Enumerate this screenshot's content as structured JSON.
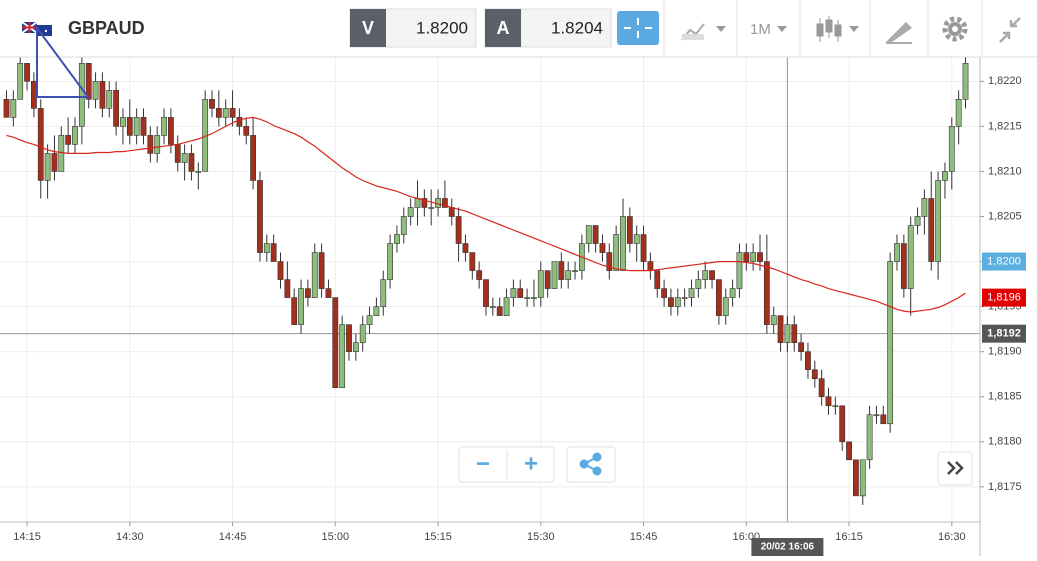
{
  "header": {
    "symbol": "GBPAUD",
    "bid_label": "V",
    "bid": "1.8200",
    "ask_label": "A",
    "ask": "1.8204",
    "timeframe": "1M"
  },
  "controls": {
    "zoom_out": "−",
    "zoom_in": "+"
  },
  "chart_data": {
    "type": "candlestick",
    "x": [
      "14:12",
      "14:13",
      "14:14",
      "14:15",
      "14:16",
      "14:17",
      "14:18",
      "14:19",
      "14:20",
      "14:21",
      "14:22",
      "14:23",
      "14:24",
      "14:25",
      "14:26",
      "14:27",
      "14:28",
      "14:29",
      "14:30",
      "14:31",
      "14:32",
      "14:33",
      "14:34",
      "14:35",
      "14:36",
      "14:37",
      "14:38",
      "14:39",
      "14:40",
      "14:41",
      "14:42",
      "14:43",
      "14:44",
      "14:45",
      "14:46",
      "14:47",
      "14:48",
      "14:49",
      "14:50",
      "14:51",
      "14:52",
      "14:53",
      "14:54",
      "14:55",
      "14:56",
      "14:57",
      "14:58",
      "14:59",
      "15:00",
      "15:01",
      "15:02",
      "15:03",
      "15:04",
      "15:05",
      "15:06",
      "15:07",
      "15:08",
      "15:09",
      "15:10",
      "15:11",
      "15:12",
      "15:13",
      "15:14",
      "15:15",
      "15:16",
      "15:17",
      "15:18",
      "15:19",
      "15:20",
      "15:21",
      "15:22",
      "15:23",
      "15:24",
      "15:25",
      "15:26",
      "15:27",
      "15:28",
      "15:29",
      "15:30",
      "15:31",
      "15:32",
      "15:33",
      "15:34",
      "15:35",
      "15:36",
      "15:37",
      "15:38",
      "15:39",
      "15:40",
      "15:41",
      "15:42",
      "15:43",
      "15:44",
      "15:45",
      "15:46",
      "15:47",
      "15:48",
      "15:49",
      "15:50",
      "15:51",
      "15:52",
      "15:53",
      "15:54",
      "15:55",
      "15:56",
      "15:57",
      "15:58",
      "15:59",
      "16:00",
      "16:01",
      "16:02",
      "16:03",
      "16:04",
      "16:05",
      "16:06",
      "16:07",
      "16:08",
      "16:09",
      "16:10",
      "16:11",
      "16:12",
      "16:13",
      "16:14",
      "16:15",
      "16:16",
      "16:17",
      "16:18",
      "16:19",
      "16:20",
      "16:21",
      "16:22",
      "16:23",
      "16:24",
      "16:25",
      "16:26",
      "16:27",
      "16:28",
      "16:29",
      "16:30",
      "16:31",
      "16:32"
    ],
    "open": [
      1.8218,
      1.8216,
      1.8218,
      1.8222,
      1.822,
      1.8217,
      1.8209,
      1.8212,
      1.821,
      1.8214,
      1.8213,
      1.8215,
      1.8222,
      1.8218,
      1.822,
      1.8217,
      1.8219,
      1.8215,
      1.8216,
      1.8214,
      1.8216,
      1.8214,
      1.8212,
      1.8214,
      1.8216,
      1.8213,
      1.8211,
      1.8212,
      1.821,
      1.821,
      1.8218,
      1.8217,
      1.8216,
      1.8217,
      1.8216,
      1.8215,
      1.8214,
      1.8209,
      1.8201,
      1.8202,
      1.82,
      1.8198,
      1.8196,
      1.8193,
      1.8197,
      1.8196,
      1.8201,
      1.8197,
      1.8196,
      1.8186,
      1.8193,
      1.819,
      1.8191,
      1.8193,
      1.8194,
      1.8195,
      1.8198,
      1.8202,
      1.8203,
      1.8205,
      1.8206,
      1.8207,
      1.8206,
      1.8206,
      1.8207,
      1.8206,
      1.8205,
      1.8202,
      1.8201,
      1.8199,
      1.8198,
      1.8195,
      1.8195,
      1.8194,
      1.8196,
      1.8197,
      1.8196,
      1.8196,
      1.8196,
      1.8199,
      1.8197,
      1.82,
      1.8198,
      1.8199,
      1.8199,
      1.8202,
      1.8204,
      1.8202,
      1.8201,
      1.8199,
      1.8199,
      1.8205,
      1.8202,
      1.8203,
      1.82,
      1.8199,
      1.8197,
      1.8196,
      1.8195,
      1.8196,
      1.8196,
      1.8197,
      1.8198,
      1.8199,
      1.8198,
      1.8194,
      1.8196,
      1.8197,
      1.8201,
      1.82,
      1.8201,
      1.82,
      1.8193,
      1.8194,
      1.8191,
      1.8193,
      1.8191,
      1.819,
      1.8188,
      1.8187,
      1.8185,
      1.8184,
      1.8184,
      1.818,
      1.8178,
      1.8174,
      1.8178,
      1.8183,
      1.8183,
      1.8182,
      1.82,
      1.8202,
      1.8197,
      1.8204,
      1.8205,
      1.8207,
      1.82,
      1.8209,
      1.821,
      1.8215,
      1.8218
    ],
    "high": [
      1.8219,
      1.8219,
      1.8223,
      1.8222,
      1.8221,
      1.8218,
      1.8213,
      1.8214,
      1.8215,
      1.8216,
      1.8216,
      1.8223,
      1.8222,
      1.8221,
      1.8221,
      1.822,
      1.822,
      1.8217,
      1.8218,
      1.8217,
      1.8217,
      1.8215,
      1.8215,
      1.8217,
      1.8217,
      1.8214,
      1.8213,
      1.8213,
      1.8211,
      1.8219,
      1.8219,
      1.8219,
      1.8218,
      1.8219,
      1.8217,
      1.8216,
      1.8216,
      1.821,
      1.8203,
      1.8203,
      1.8201,
      1.82,
      1.8197,
      1.8198,
      1.8198,
      1.8202,
      1.8202,
      1.8198,
      1.8196,
      1.8194,
      1.8193,
      1.8192,
      1.8194,
      1.8195,
      1.8196,
      1.8199,
      1.8203,
      1.8204,
      1.8206,
      1.8207,
      1.8209,
      1.8208,
      1.8208,
      1.8208,
      1.8209,
      1.8207,
      1.8206,
      1.8203,
      1.8201,
      1.82,
      1.8198,
      1.8196,
      1.8196,
      1.8197,
      1.8198,
      1.8198,
      1.8197,
      1.8198,
      1.82,
      1.8199,
      1.82,
      1.8201,
      1.82,
      1.82,
      1.8203,
      1.8204,
      1.8204,
      1.8203,
      1.8202,
      1.8204,
      1.8207,
      1.8206,
      1.8204,
      1.8204,
      1.8201,
      1.8199,
      1.8198,
      1.8197,
      1.8197,
      1.8197,
      1.8198,
      1.8199,
      1.82,
      1.8199,
      1.8198,
      1.8197,
      1.8198,
      1.8202,
      1.8202,
      1.8202,
      1.8203,
      1.8203,
      1.8195,
      1.8194,
      1.8194,
      1.8194,
      1.8192,
      1.8191,
      1.8189,
      1.8188,
      1.8186,
      1.8185,
      1.8184,
      1.818,
      1.8178,
      1.8178,
      1.8184,
      1.8184,
      1.8184,
      1.8201,
      1.8203,
      1.8203,
      1.8205,
      1.8206,
      1.8208,
      1.821,
      1.821,
      1.8211,
      1.8216,
      1.8219,
      1.8224
    ],
    "low": [
      1.8216,
      1.8215,
      1.8218,
      1.8219,
      1.8216,
      1.8207,
      1.8207,
      1.8209,
      1.821,
      1.8212,
      1.8212,
      1.8213,
      1.8217,
      1.8217,
      1.8216,
      1.8216,
      1.8214,
      1.8213,
      1.8213,
      1.8213,
      1.8213,
      1.8211,
      1.8211,
      1.8213,
      1.8212,
      1.821,
      1.8209,
      1.8209,
      1.8208,
      1.821,
      1.8216,
      1.8215,
      1.8215,
      1.8215,
      1.8214,
      1.8213,
      1.8208,
      1.82,
      1.82,
      1.82,
      1.8197,
      1.8196,
      1.8193,
      1.8192,
      1.8195,
      1.8196,
      1.8196,
      1.8196,
      1.8186,
      1.8186,
      1.8189,
      1.8189,
      1.819,
      1.8192,
      1.8194,
      1.8194,
      1.8197,
      1.8201,
      1.8202,
      1.8204,
      1.8204,
      1.8205,
      1.8204,
      1.8205,
      1.8206,
      1.8204,
      1.82,
      1.82,
      1.8198,
      1.8197,
      1.8194,
      1.8194,
      1.8194,
      1.8194,
      1.8195,
      1.8196,
      1.8195,
      1.8195,
      1.8195,
      1.8196,
      1.8197,
      1.8197,
      1.8197,
      1.8198,
      1.8198,
      1.8201,
      1.8201,
      1.82,
      1.8198,
      1.8199,
      1.8199,
      1.8201,
      1.82,
      1.8199,
      1.8198,
      1.8196,
      1.8195,
      1.8194,
      1.8194,
      1.8195,
      1.8195,
      1.8196,
      1.8197,
      1.8197,
      1.8193,
      1.8193,
      1.8195,
      1.8196,
      1.8199,
      1.8199,
      1.8199,
      1.8192,
      1.8192,
      1.819,
      1.819,
      1.819,
      1.8189,
      1.8187,
      1.8186,
      1.8184,
      1.8183,
      1.8183,
      1.8179,
      1.8178,
      1.8174,
      1.8173,
      1.8177,
      1.8182,
      1.8182,
      1.8181,
      1.8199,
      1.8196,
      1.8194,
      1.8203,
      1.8203,
      1.8199,
      1.8198,
      1.8207,
      1.8208,
      1.8213,
      1.8217
    ],
    "close": [
      1.8216,
      1.8218,
      1.8222,
      1.822,
      1.8217,
      1.8209,
      1.8212,
      1.821,
      1.8214,
      1.8213,
      1.8215,
      1.8222,
      1.8218,
      1.822,
      1.8217,
      1.8219,
      1.8215,
      1.8216,
      1.8214,
      1.8216,
      1.8214,
      1.8212,
      1.8214,
      1.8216,
      1.8213,
      1.8211,
      1.8212,
      1.821,
      1.821,
      1.8218,
      1.8217,
      1.8216,
      1.8217,
      1.8216,
      1.8215,
      1.8214,
      1.8209,
      1.8201,
      1.8202,
      1.82,
      1.8198,
      1.8196,
      1.8193,
      1.8197,
      1.8196,
      1.8201,
      1.8197,
      1.8196,
      1.8186,
      1.8193,
      1.819,
      1.8191,
      1.8193,
      1.8194,
      1.8195,
      1.8198,
      1.8202,
      1.8203,
      1.8205,
      1.8206,
      1.8207,
      1.8206,
      1.8206,
      1.8207,
      1.8206,
      1.8205,
      1.8202,
      1.8201,
      1.8199,
      1.8198,
      1.8195,
      1.8195,
      1.8194,
      1.8196,
      1.8197,
      1.8196,
      1.8196,
      1.8196,
      1.8199,
      1.8197,
      1.82,
      1.8198,
      1.8199,
      1.8199,
      1.8202,
      1.8204,
      1.8202,
      1.8201,
      1.8199,
      1.8203,
      1.8205,
      1.8202,
      1.8203,
      1.82,
      1.8199,
      1.8197,
      1.8196,
      1.8195,
      1.8196,
      1.8196,
      1.8197,
      1.8198,
      1.8199,
      1.8198,
      1.8194,
      1.8196,
      1.8197,
      1.8201,
      1.82,
      1.8201,
      1.82,
      1.8193,
      1.8194,
      1.8191,
      1.8193,
      1.8191,
      1.819,
      1.8188,
      1.8187,
      1.8185,
      1.8184,
      1.8184,
      1.818,
      1.8178,
      1.8174,
      1.8178,
      1.8183,
      1.8183,
      1.8182,
      1.82,
      1.8202,
      1.8197,
      1.8204,
      1.8205,
      1.8207,
      1.82,
      1.8209,
      1.821,
      1.8215,
      1.8218,
      1.8222
    ],
    "ma": {
      "color": "#d9261c",
      "values": [
        1.8214,
        1.82138,
        1.82135,
        1.82132,
        1.8213,
        1.82127,
        1.82124,
        1.82122,
        1.82121,
        1.8212,
        1.8212,
        1.8212,
        1.8212,
        1.82121,
        1.82121,
        1.82121,
        1.82122,
        1.82122,
        1.82123,
        1.82124,
        1.82125,
        1.82126,
        1.82127,
        1.82128,
        1.82129,
        1.8213,
        1.82132,
        1.82134,
        1.82136,
        1.82139,
        1.82142,
        1.82146,
        1.8215,
        1.82154,
        1.82157,
        1.82159,
        1.8216,
        1.82158,
        1.82155,
        1.82151,
        1.82148,
        1.82145,
        1.82142,
        1.82138,
        1.82133,
        1.82128,
        1.82122,
        1.82116,
        1.8211,
        1.82104,
        1.82099,
        1.82094,
        1.8209,
        1.82087,
        1.82084,
        1.82082,
        1.8208,
        1.82078,
        1.82075,
        1.82072,
        1.8207,
        1.82068,
        1.82066,
        1.82064,
        1.82062,
        1.8206,
        1.82058,
        1.82056,
        1.82053,
        1.8205,
        1.82047,
        1.82044,
        1.82041,
        1.82038,
        1.82035,
        1.82032,
        1.82029,
        1.82026,
        1.82023,
        1.8202,
        1.82017,
        1.82014,
        1.82011,
        1.82008,
        1.82005,
        1.82002,
        1.81999,
        1.81996,
        1.81994,
        1.81992,
        1.81991,
        1.8199,
        1.8199,
        1.8199,
        1.8199,
        1.81991,
        1.81992,
        1.81993,
        1.81994,
        1.81995,
        1.81996,
        1.81997,
        1.81998,
        1.81999,
        1.82,
        1.82,
        1.82,
        1.82,
        1.81999,
        1.81998,
        1.81996,
        1.81994,
        1.81992,
        1.81989,
        1.81986,
        1.81983,
        1.8198,
        1.81978,
        1.81975,
        1.81973,
        1.8197,
        1.81968,
        1.81966,
        1.81964,
        1.81962,
        1.8196,
        1.81958,
        1.81956,
        1.81953,
        1.8195,
        1.81947,
        1.81945,
        1.81944,
        1.81945,
        1.81946,
        1.81947,
        1.81949,
        1.81952,
        1.81956,
        1.8196,
        1.81965
      ]
    },
    "up_color": "#8fbd7c",
    "down_color": "#a2301c",
    "ylim": [
      1.81711,
      1.82227
    ],
    "yticks": [
      {
        "value": 1.8175,
        "label": "1,8175"
      },
      {
        "value": 1.818,
        "label": "1,8180"
      },
      {
        "value": 1.8185,
        "label": "1,8185"
      },
      {
        "value": 1.819,
        "label": "1,8190"
      },
      {
        "value": 1.8195,
        "label": "1,8195"
      },
      {
        "value": 1.82,
        "label": "1,8200"
      },
      {
        "value": 1.8205,
        "label": "1,8205"
      },
      {
        "value": 1.821,
        "label": "1,8210"
      },
      {
        "value": 1.8215,
        "label": "1,8215"
      },
      {
        "value": 1.822,
        "label": "1,8220"
      }
    ],
    "xticks": [
      "14:15",
      "14:30",
      "14:45",
      "15:00",
      "15:15",
      "15:30",
      "15:45",
      "16:00",
      "16:15",
      "16:30"
    ],
    "grid": true,
    "markers": [
      {
        "value": 1.82,
        "label": "1,8200",
        "color": "#5aaee0"
      },
      {
        "value": 1.8196,
        "label": "1,8196",
        "color": "#e00000"
      }
    ],
    "crosshair": {
      "price": {
        "value": 1.8192,
        "label": "1,8192"
      },
      "x": "16:06",
      "label": "20/02 16:06"
    }
  }
}
